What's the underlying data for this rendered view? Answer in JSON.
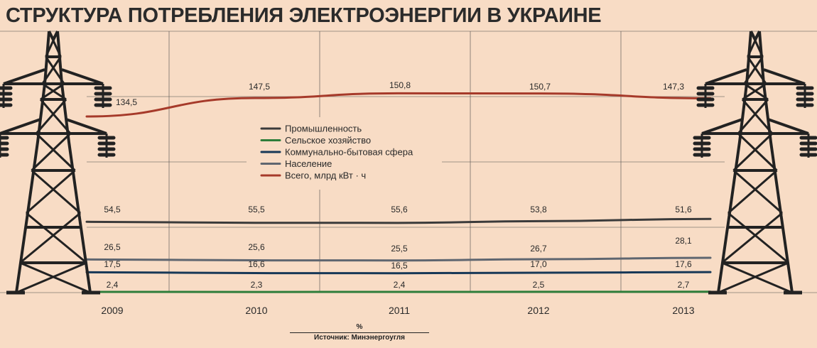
{
  "title": "СТРУКТУРА ПОТРЕБЛЕНИЯ ЭЛЕКТРОЭНЕРГИИ В УКРАИНЕ",
  "unit": "%",
  "source": "Источник: Минэнергоугля",
  "colors": {
    "background": "#f8dcc5",
    "grid": "#4a4a4a",
    "industry": "#3b3b3b",
    "agriculture": "#2e7d3a",
    "communal": "#173857",
    "population": "#5f6670",
    "total": "#a63a2a"
  },
  "chart_data": {
    "type": "line",
    "title": "СТРУКТУРА ПОТРЕБЛЕНИЯ ЭЛЕКТРОЭНЕРГИИ В УКРАИНЕ",
    "x": [
      "2009",
      "2010",
      "2011",
      "2012",
      "2013"
    ],
    "series": [
      {
        "name": "Промышленность",
        "color": "#3b3b3b",
        "values": [
          54.5,
          55.5,
          55.6,
          53.8,
          51.6
        ],
        "labels": [
          "54,5",
          "55,5",
          "55,6",
          "53,8",
          "51,6"
        ]
      },
      {
        "name": "Сельское хозяйство",
        "color": "#2e7d3a",
        "values": [
          2.4,
          2.3,
          2.4,
          2.5,
          2.7
        ],
        "labels": [
          "2,4",
          "2,3",
          "2,4",
          "2,5",
          "2,7"
        ]
      },
      {
        "name": "Коммунально-бытовая сфера",
        "color": "#173857",
        "values": [
          17.5,
          16.6,
          16.5,
          17.0,
          17.6
        ],
        "labels": [
          "17,5",
          "16,6",
          "16,5",
          "17,0",
          "17,6"
        ]
      },
      {
        "name": "Население",
        "color": "#5f6670",
        "values": [
          26.5,
          25.6,
          25.5,
          26.7,
          28.1
        ],
        "labels": [
          "26,5",
          "25,6",
          "25,5",
          "26,7",
          "28,1"
        ]
      },
      {
        "name": "Всего, млрд кВт · ч",
        "color": "#a63a2a",
        "values": [
          134.5,
          147.5,
          150.8,
          150.7,
          147.3
        ],
        "labels": [
          "134,5",
          "147,5",
          "150,8",
          "150,7",
          "147,3"
        ]
      }
    ],
    "xlabel": "",
    "ylabel": "%",
    "grid": true,
    "legend": "center"
  }
}
